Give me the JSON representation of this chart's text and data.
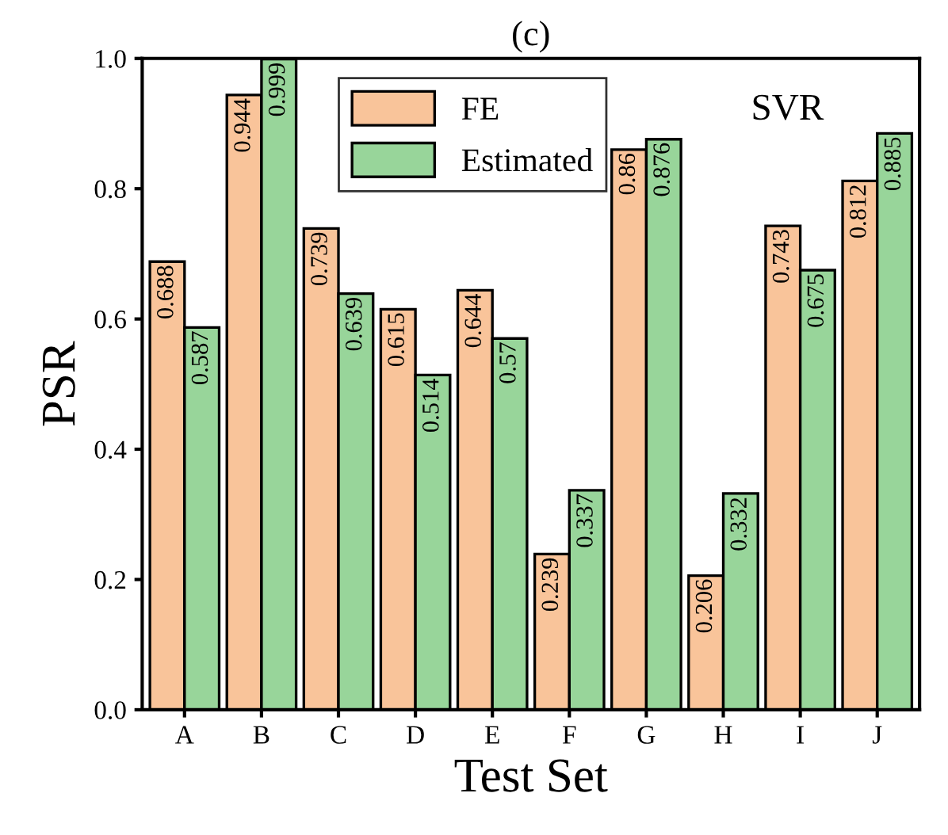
{
  "chart_data": {
    "type": "bar",
    "title": "(c)",
    "xlabel": "Test Set",
    "ylabel": "PSR",
    "categories": [
      "A",
      "B",
      "C",
      "D",
      "E",
      "F",
      "G",
      "H",
      "I",
      "J"
    ],
    "series": [
      {
        "name": "FE",
        "color": "#f9c49a",
        "values": [
          0.688,
          0.944,
          0.739,
          0.615,
          0.644,
          0.239,
          0.86,
          0.206,
          0.743,
          0.812
        ]
      },
      {
        "name": "Estimated",
        "color": "#98d59a",
        "values": [
          0.587,
          0.999,
          0.639,
          0.514,
          0.57,
          0.337,
          0.876,
          0.332,
          0.675,
          0.885
        ]
      }
    ],
    "ylim": [
      0,
      1.0
    ],
    "yticks": [
      {
        "value": 0,
        "label": "0.0"
      },
      {
        "value": 0.2,
        "label": "0.2"
      },
      {
        "value": 0.4,
        "label": "0.4"
      },
      {
        "value": 0.6,
        "label": "0.6"
      },
      {
        "value": 0.8,
        "label": "0.8"
      },
      {
        "value": 1.0,
        "label": "1.0"
      }
    ],
    "annotations": [
      "SVR"
    ],
    "data_labels": true,
    "legend": "top",
    "grid": false
  }
}
